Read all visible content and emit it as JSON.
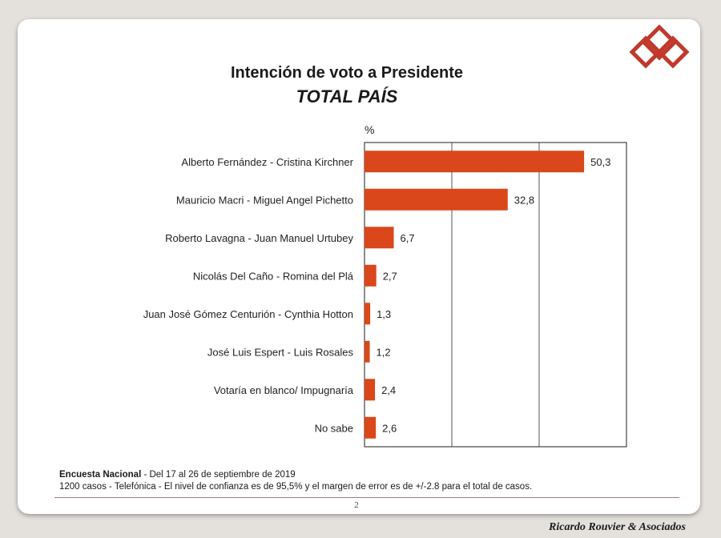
{
  "slide": {
    "title": "Intención de voto a Presidente",
    "subtitle": "TOTAL PAÍS",
    "footnote_line1_bold": "Encuesta Nacional",
    "footnote_line1_rest": " - Del 17 al 26 de septiembre de 2019",
    "footnote_line2": "1200 casos - Telefónica  - El nivel de confianza es de 95,5% y el margen de error es de +/-2.8 para el total de casos.",
    "page_number": "2",
    "brand": "Ricardo Rouvier & Asociados"
  },
  "colors": {
    "bar": "#d9471a",
    "logo": "#c0392b"
  },
  "chart_data": {
    "type": "bar",
    "orientation": "horizontal",
    "unit_label": "%",
    "categories": [
      "Alberto Fernández - Cristina Kirchner",
      "Mauricio Macri - Miguel Angel Pichetto",
      "Roberto Lavagna - Juan Manuel Urtubey",
      "Nicolás Del Caño - Romina del Plá",
      "Juan José Gómez Centurión - Cynthia  Hotton",
      "José Luis Espert - Luis Rosales",
      "Votaría en blanco/ Impugnaría",
      "No sabe"
    ],
    "values": [
      50.3,
      32.8,
      6.7,
      2.7,
      1.3,
      1.2,
      2.4,
      2.6
    ],
    "value_labels": [
      "50,3",
      "32,8",
      "6,7",
      "2,7",
      "1,3",
      "1,2",
      "2,4",
      "2,6"
    ],
    "xlim": [
      0,
      60
    ],
    "gridlines": [
      20,
      40
    ],
    "grid": true,
    "legend": "none"
  }
}
